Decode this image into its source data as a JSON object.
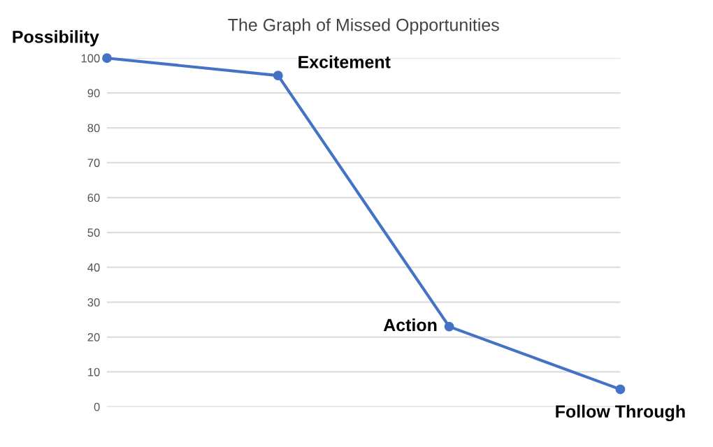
{
  "chart_data": {
    "type": "line",
    "title": "The Graph of Missed Opportunities",
    "categories": [
      null,
      null,
      null,
      null
    ],
    "series": [
      {
        "color": "#4472c4",
        "values": [
          100,
          95,
          23,
          5
        ],
        "value_labels": [
          "Possibility",
          "Excitement",
          "Action",
          "Follow Through"
        ]
      }
    ],
    "ylim": [
      0,
      100
    ],
    "yticks": [
      0,
      10,
      20,
      30,
      40,
      50,
      60,
      70,
      80,
      90,
      100
    ],
    "grid": "y",
    "marker": "circle",
    "line_style": "solid",
    "legend": false
  }
}
